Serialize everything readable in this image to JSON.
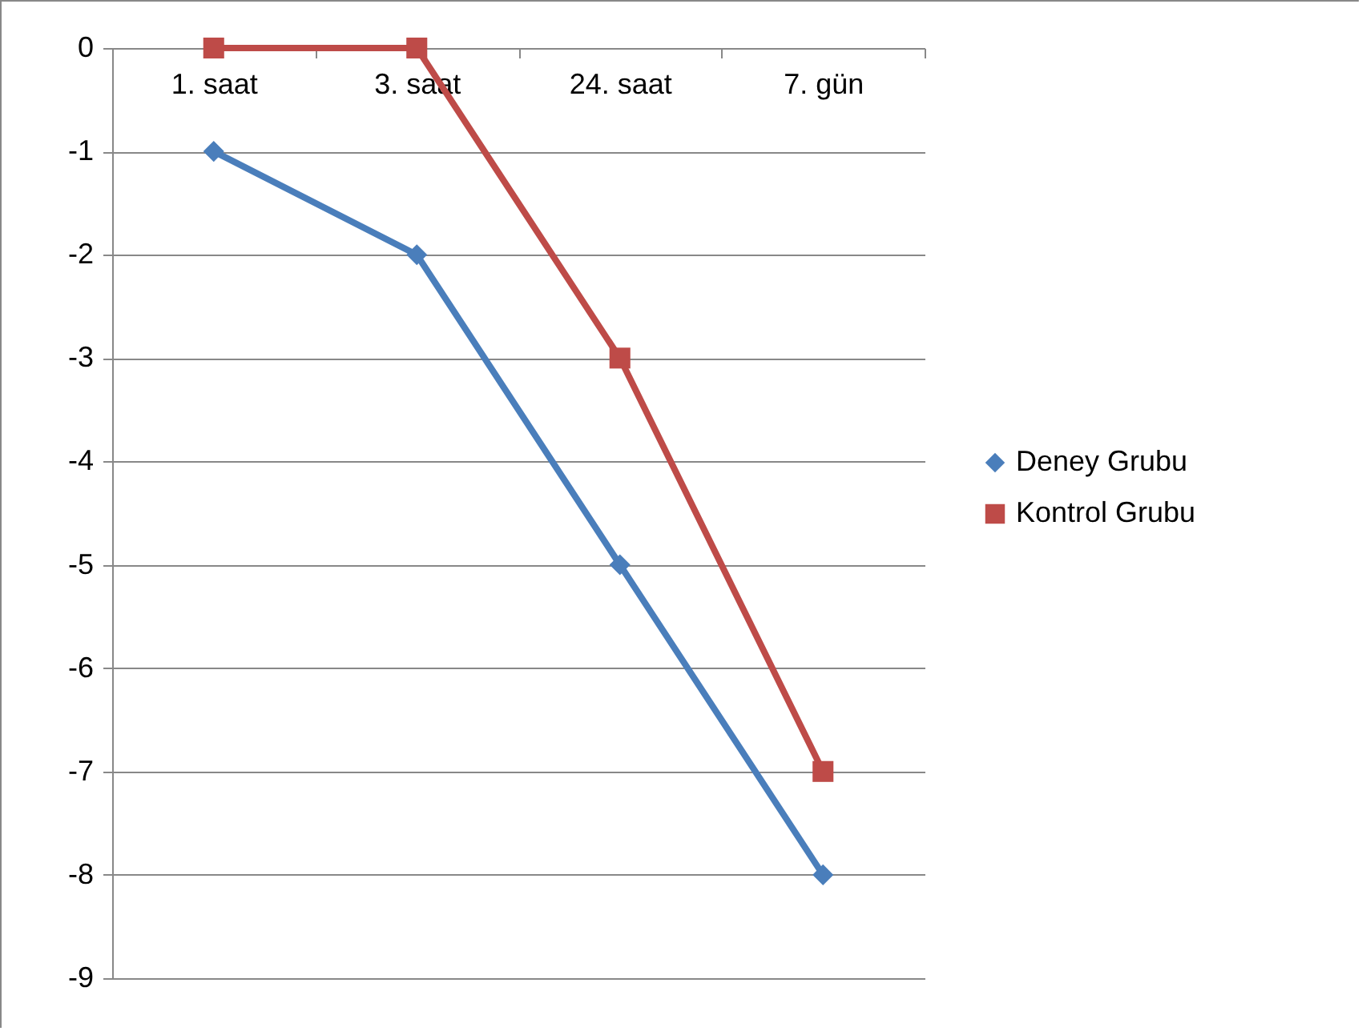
{
  "chart_data": {
    "type": "line",
    "categories": [
      "1. saat",
      "3. saat",
      "24. saat",
      "7. gün"
    ],
    "series": [
      {
        "name": "Deney Grubu",
        "color": "#4a7ebb",
        "marker": "diamond",
        "values": [
          -1,
          -2,
          -5,
          -8
        ]
      },
      {
        "name": "Kontrol Grubu",
        "color": "#be4b48",
        "marker": "square",
        "values": [
          0,
          0,
          -3,
          -7
        ]
      }
    ],
    "ylim": [
      -9,
      0
    ],
    "yticks": [
      -9,
      -8,
      -7,
      -6,
      -5,
      -4,
      -3,
      -2,
      -1,
      0
    ],
    "grid": "y",
    "legend": "right",
    "line_style": "solid"
  }
}
